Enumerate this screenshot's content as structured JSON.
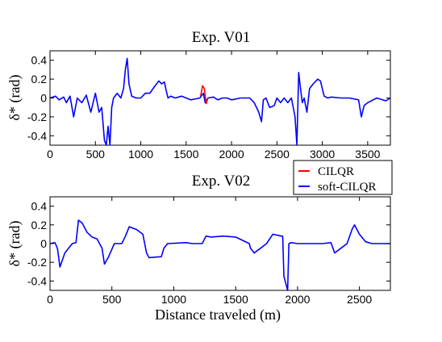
{
  "figure": {
    "legend_position": "between-panels-right",
    "legend": [
      {
        "name": "CILQR",
        "color": "#ff0000"
      },
      {
        "name": "soft-CILQR",
        "color": "#0000ff"
      }
    ],
    "xlabel": "Distance traveled (m)"
  },
  "chart_data": [
    {
      "type": "line",
      "title": "Exp. V01",
      "xlabel": "",
      "ylabel": "δ* (rad)",
      "xlim": [
        0,
        3750
      ],
      "ylim": [
        -0.5,
        0.5
      ],
      "xticks": [
        "0",
        "500",
        "1000",
        "1500",
        "2000",
        "2500",
        "3000",
        "3500"
      ],
      "yticks": [
        "0.4",
        "0.2",
        "0",
        "-0.2",
        "-0.4"
      ],
      "grid": false,
      "series": [
        {
          "name": "soft-CILQR",
          "color": "#0000ff",
          "x": [
            0,
            60,
            100,
            150,
            180,
            220,
            260,
            300,
            350,
            400,
            450,
            500,
            540,
            570,
            600,
            620,
            640,
            660,
            680,
            700,
            740,
            780,
            810,
            830,
            850,
            870,
            900,
            950,
            1000,
            1050,
            1100,
            1150,
            1200,
            1230,
            1260,
            1280,
            1300,
            1330,
            1380,
            1450,
            1550,
            1650,
            1690,
            1710,
            1740,
            1800,
            1850,
            1900,
            1950,
            2000,
            2100,
            2200,
            2250,
            2300,
            2330,
            2350,
            2380,
            2420,
            2470,
            2500,
            2540,
            2580,
            2620,
            2660,
            2700,
            2720,
            2740,
            2760,
            2780,
            2800,
            2830,
            2860,
            2900,
            2950,
            2980,
            3000,
            3020,
            3060,
            3100,
            3200,
            3300,
            3400,
            3430,
            3460,
            3500,
            3600,
            3700,
            3750
          ],
          "y": [
            0.0,
            0.02,
            -0.02,
            0.01,
            -0.05,
            0.02,
            -0.2,
            0.0,
            -0.05,
            0.03,
            -0.15,
            0.05,
            -0.15,
            -0.1,
            -0.45,
            -0.5,
            -0.3,
            -0.5,
            -0.1,
            0.0,
            0.05,
            0.0,
            0.1,
            0.3,
            0.42,
            0.15,
            0.02,
            0.0,
            0.0,
            0.05,
            0.05,
            0.12,
            0.18,
            0.15,
            0.17,
            0.08,
            0.0,
            0.02,
            0.0,
            0.02,
            -0.02,
            0.0,
            0.05,
            -0.05,
            0.0,
            0.01,
            -0.02,
            0.0,
            0.0,
            -0.02,
            0.0,
            0.0,
            -0.05,
            -0.15,
            -0.25,
            -0.02,
            0.0,
            -0.1,
            -0.08,
            0.0,
            -0.05,
            0.0,
            -0.05,
            0.0,
            -0.2,
            -0.5,
            0.27,
            0.1,
            -0.05,
            0.0,
            -0.15,
            0.1,
            0.15,
            0.2,
            0.18,
            0.1,
            0.02,
            0.0,
            0.01,
            0.0,
            0.0,
            -0.02,
            -0.2,
            -0.08,
            -0.05,
            0.0,
            -0.03,
            0.0
          ]
        },
        {
          "name": "CILQR",
          "color": "#ff0000",
          "x": [
            1660,
            1680,
            1700,
            1720,
            1740
          ],
          "y": [
            0.02,
            0.13,
            0.1,
            -0.06,
            0.0
          ]
        }
      ]
    },
    {
      "type": "line",
      "title": "Exp. V02",
      "xlabel": "Distance traveled (m)",
      "ylabel": "δ* (rad)",
      "xlim": [
        0,
        2750
      ],
      "ylim": [
        -0.5,
        0.5
      ],
      "xticks": [
        "0",
        "500",
        "1000",
        "1500",
        "2000",
        "2500"
      ],
      "yticks": [
        "0.4",
        "0.2",
        "0",
        "-0.2",
        "-0.4"
      ],
      "grid": false,
      "series": [
        {
          "name": "soft-CILQR",
          "color": "#0000ff",
          "x": [
            0,
            40,
            60,
            80,
            120,
            180,
            210,
            230,
            260,
            300,
            340,
            380,
            420,
            440,
            470,
            520,
            580,
            610,
            640,
            700,
            750,
            780,
            800,
            900,
            920,
            950,
            1100,
            1150,
            1230,
            1260,
            1300,
            1400,
            1500,
            1610,
            1620,
            1650,
            1700,
            1750,
            1800,
            1870,
            1880,
            1890,
            1920,
            1930,
            1950,
            2000,
            2100,
            2200,
            2270,
            2300,
            2350,
            2400,
            2440,
            2460,
            2500,
            2550,
            2600,
            2750
          ],
          "y": [
            0.0,
            0.01,
            -0.05,
            -0.25,
            -0.1,
            0.0,
            0.01,
            0.25,
            0.22,
            0.12,
            0.07,
            0.05,
            -0.05,
            -0.22,
            -0.15,
            0.0,
            0.0,
            0.08,
            0.18,
            0.15,
            0.1,
            -0.1,
            -0.15,
            -0.14,
            -0.05,
            0.0,
            0.01,
            0.0,
            0.0,
            0.08,
            0.07,
            0.08,
            0.07,
            0.0,
            -0.05,
            -0.1,
            -0.05,
            0.0,
            0.1,
            0.08,
            0.08,
            -0.35,
            -0.5,
            0.0,
            0.01,
            0.0,
            0.0,
            0.0,
            0.01,
            -0.1,
            -0.05,
            0.0,
            0.15,
            0.2,
            0.1,
            0.02,
            0.0,
            0.0
          ]
        }
      ]
    }
  ]
}
